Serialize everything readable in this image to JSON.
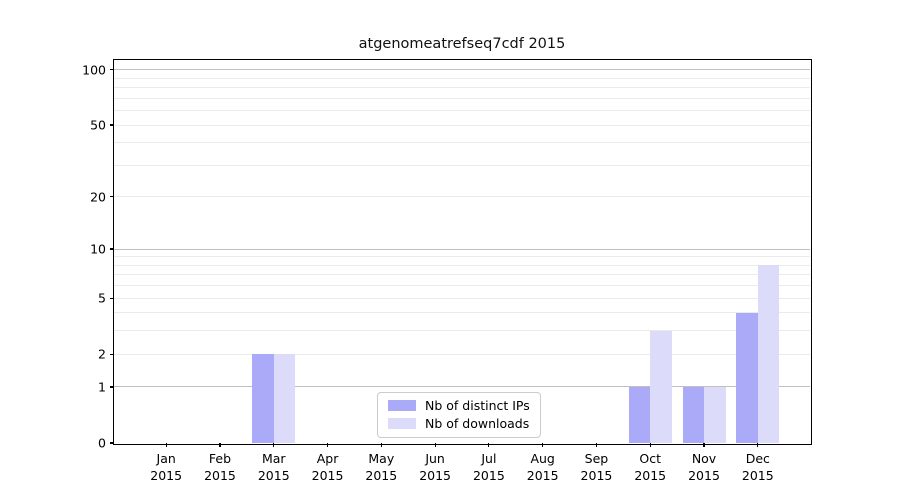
{
  "chart_data": {
    "type": "bar",
    "title": "atgenomeatrefseq7cdf 2015",
    "categories": [
      "Jan 2015",
      "Feb 2015",
      "Mar 2015",
      "Apr 2015",
      "May 2015",
      "Jun 2015",
      "Jul 2015",
      "Aug 2015",
      "Sep 2015",
      "Oct 2015",
      "Nov 2015",
      "Dec 2015"
    ],
    "series": [
      {
        "name": "Nb of distinct IPs",
        "color": "#aaaaf8",
        "values": [
          0,
          0,
          2,
          0,
          0,
          0,
          0,
          0,
          0,
          1,
          1,
          4
        ]
      },
      {
        "name": "Nb of downloads",
        "color": "#dcdcfa",
        "values": [
          0,
          0,
          2,
          0,
          0,
          0,
          0,
          0,
          0,
          3,
          1,
          8
        ]
      }
    ],
    "yscale": "log10(1+y)",
    "ylim": [
      0,
      113
    ],
    "y_ticks": [
      100,
      50,
      20,
      10,
      5,
      2,
      1,
      0
    ],
    "major_gridline_values": [
      1,
      10,
      100
    ],
    "minor_gridline_values": [
      2,
      3,
      4,
      5,
      6,
      7,
      8,
      9,
      20,
      30,
      40,
      50,
      60,
      70,
      80,
      90
    ],
    "grid": "horizontal",
    "legend_position": "inside-bottom-center",
    "xlabel": "",
    "ylabel": ""
  },
  "colors": {
    "background": "#ffffff",
    "axis": "#000000",
    "text": "#000000",
    "minor_grid": "#eaeaea",
    "major_grid": "#c0c0c0",
    "legend_border": "#cccccc"
  }
}
